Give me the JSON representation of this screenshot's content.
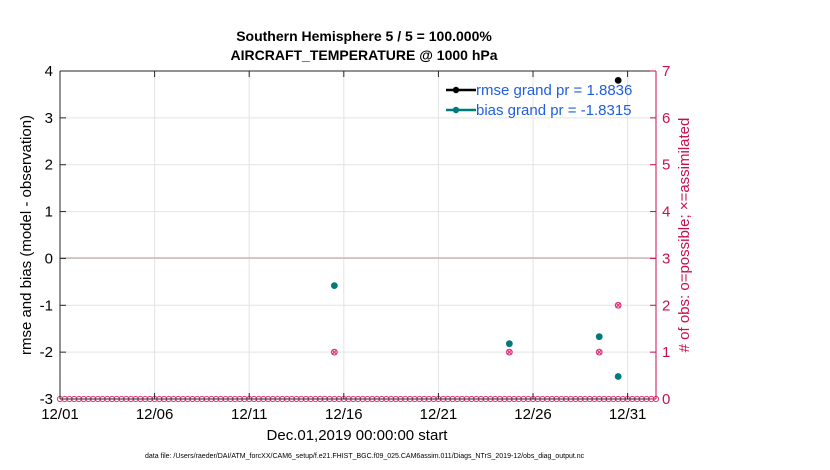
{
  "colors": {
    "rmse": "#000000",
    "bias": "#007b7b",
    "obs": "#e0337a",
    "right_axis": "#c8104e",
    "legend_text": "#1f5fe0",
    "zero_line": "#c9a9a9",
    "grid": "#e3e3e3"
  },
  "chart_data": {
    "type": "scatter",
    "title": [
      "Southern Hemisphere 5 / 5 = 100.000%",
      "AIRCRAFT_TEMPERATURE @ 1000 hPa"
    ],
    "xlabel": "Dec.01,2019 00:00:00 start",
    "ylabel": "rmse and bias (model - observation)",
    "ylabel_right": "# of obs: o=possible; ×=assimilated",
    "footer": "data file: /Users/raeder/DAI/ATM_forcXX/CAM6_setup/f.e21.FHIST_BGC.f09_025.CAM6assim.011/Diags_NTrS_2019-12/obs_diag_output.nc",
    "xlim": [
      1,
      32.5
    ],
    "ylim": [
      -3,
      4
    ],
    "ylim_right": [
      0,
      7
    ],
    "x_ticks": [
      1,
      6,
      11,
      16,
      21,
      26,
      31
    ],
    "x_tick_labels": [
      "12/01",
      "12/06",
      "12/11",
      "12/16",
      "12/21",
      "12/26",
      "12/31"
    ],
    "y_ticks": [
      -3,
      -2,
      -1,
      0,
      1,
      2,
      3,
      4
    ],
    "y_tick_labels": [
      "-3",
      "-2",
      "-1",
      "0",
      "1",
      "2",
      "3",
      "4"
    ],
    "y_right_ticks": [
      0,
      1,
      2,
      3,
      4,
      5,
      6,
      7
    ],
    "y_right_tick_labels": [
      "0",
      "1",
      "2",
      "3",
      "4",
      "5",
      "6",
      "7"
    ],
    "legend": [
      {
        "name": "rmse grand pr = 1.8836",
        "series": "rmse"
      },
      {
        "name": "bias grand pr = -1.8315",
        "series": "bias"
      }
    ],
    "series": [
      {
        "name": "rmse",
        "points": [
          [
            30.5,
            3.8
          ]
        ]
      },
      {
        "name": "bias",
        "points": [
          [
            15.5,
            -0.58
          ],
          [
            24.75,
            -1.82
          ],
          [
            29.5,
            -1.67
          ],
          [
            30.5,
            -2.52
          ]
        ]
      }
    ],
    "obs_counts": {
      "x_start": 1,
      "x_step": 0.25,
      "count": 127,
      "nonzero": [
        [
          15.5,
          1
        ],
        [
          24.75,
          1
        ],
        [
          29.5,
          1
        ],
        [
          30.5,
          2
        ]
      ]
    }
  }
}
